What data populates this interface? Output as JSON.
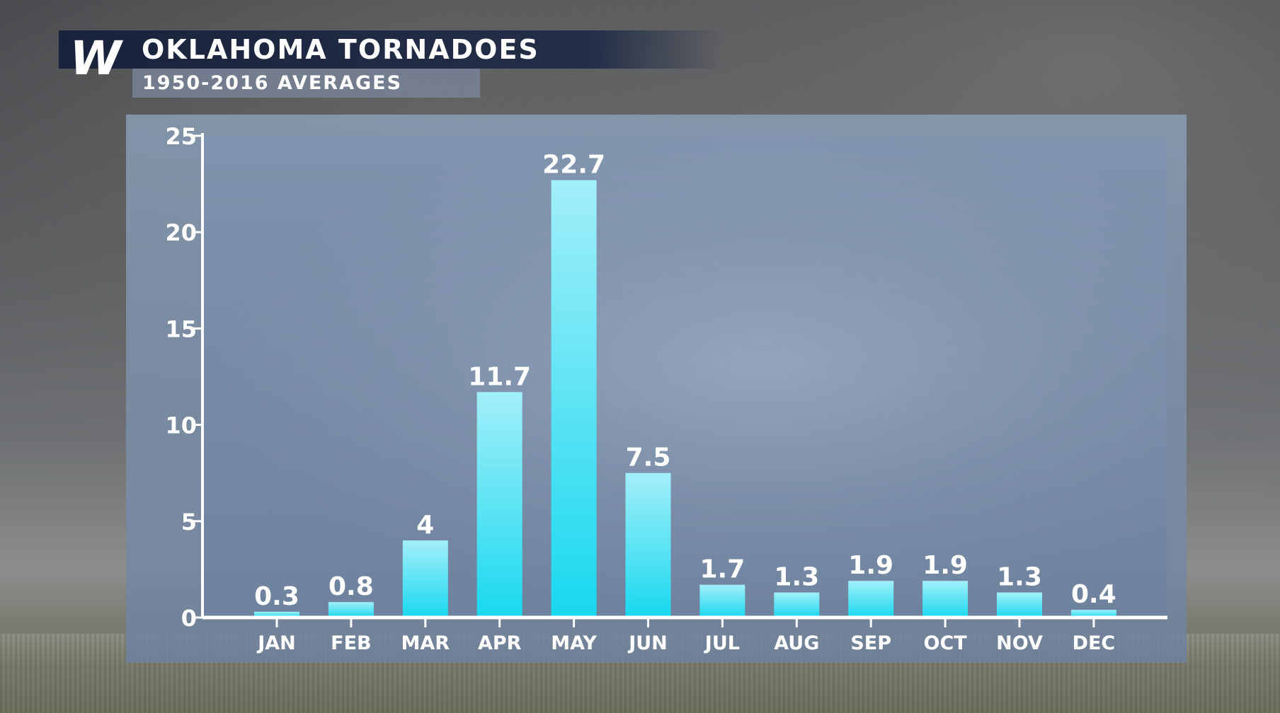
{
  "header": {
    "logo_letter": "W",
    "title": "OKLAHOMA TORNADOES",
    "subtitle": "1950-2016 AVERAGES"
  },
  "colors": {
    "bar_top": "#a2eff9",
    "bar_bottom": "#19d8ef",
    "axis": "#ffffff",
    "title_bg": "#1c2a48",
    "subtitle_bg": "#7a8498"
  },
  "chart_data": {
    "type": "bar",
    "title": "OKLAHOMA TORNADOES",
    "subtitle": "1950-2016 AVERAGES",
    "xlabel": "",
    "ylabel": "",
    "ylim": [
      0,
      25
    ],
    "yticks": [
      0,
      5,
      10,
      15,
      20,
      25
    ],
    "grid": false,
    "legend": "none",
    "categories": [
      "JAN",
      "FEB",
      "MAR",
      "APR",
      "MAY",
      "JUN",
      "JUL",
      "AUG",
      "SEP",
      "OCT",
      "NOV",
      "DEC"
    ],
    "values": [
      0.3,
      0.8,
      4,
      11.7,
      22.7,
      7.5,
      1.7,
      1.3,
      1.9,
      1.9,
      1.3,
      0.4
    ],
    "data_labels": [
      "0.3",
      "0.8",
      "4",
      "11.7",
      "22.7",
      "7.5",
      "1.7",
      "1.3",
      "1.9",
      "1.9",
      "1.3",
      "0.4"
    ]
  }
}
